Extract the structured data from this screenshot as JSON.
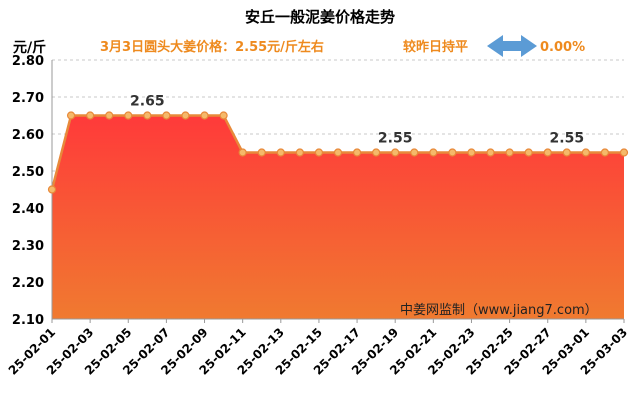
{
  "chart_data": {
    "type": "area",
    "title": "安丘一般泥姜价格走势",
    "subtitle": "3月3日圆头大姜价格：2.55元/斤左右",
    "compare_text": "较昨日持平",
    "change_value": "0.00%",
    "ylabel": "元/斤",
    "ylim": [
      2.1,
      2.8
    ],
    "yticks": [
      "2.10",
      "2.20",
      "2.30",
      "2.40",
      "2.50",
      "2.60",
      "2.70",
      "2.80"
    ],
    "grid": true,
    "x": [
      "25-02-01",
      "25-02-02",
      "25-02-03",
      "25-02-04",
      "25-02-05",
      "25-02-06",
      "25-02-07",
      "25-02-08",
      "25-02-09",
      "25-02-10",
      "25-02-11",
      "25-02-12",
      "25-02-13",
      "25-02-14",
      "25-02-15",
      "25-02-16",
      "25-02-17",
      "25-02-18",
      "25-02-19",
      "25-02-20",
      "25-02-21",
      "25-02-22",
      "25-02-23",
      "25-02-24",
      "25-02-25",
      "25-02-26",
      "25-02-27",
      "25-02-28",
      "25-03-01",
      "25-03-02",
      "25-03-03"
    ],
    "xticks": [
      "25-02-01",
      "25-02-03",
      "25-02-05",
      "25-02-07",
      "25-02-09",
      "25-02-11",
      "25-02-13",
      "25-02-15",
      "25-02-17",
      "25-02-19",
      "25-02-21",
      "25-02-23",
      "25-02-25",
      "25-02-27",
      "25-03-01",
      "25-03-03"
    ],
    "values": [
      2.45,
      2.65,
      2.65,
      2.65,
      2.65,
      2.65,
      2.65,
      2.65,
      2.65,
      2.65,
      2.55,
      2.55,
      2.55,
      2.55,
      2.55,
      2.55,
      2.55,
      2.55,
      2.55,
      2.55,
      2.55,
      2.55,
      2.55,
      2.55,
      2.55,
      2.55,
      2.55,
      2.55,
      2.55,
      2.55,
      2.55
    ],
    "data_labels": [
      {
        "index": 5,
        "text": "2.65"
      },
      {
        "index": 18,
        "text": "2.55"
      },
      {
        "index": 27,
        "text": "2.55"
      }
    ],
    "watermark": "中姜网监制（www.jiang7.com）",
    "colors": {
      "line": "#e8893a",
      "marker_fill": "#f5b96a",
      "area_top": "#ff3a3a",
      "area_bottom": "#f07a30",
      "arrow": "#5b9bd5",
      "grid": "#c8c8c8",
      "accent": "#ee8a1e"
    }
  }
}
